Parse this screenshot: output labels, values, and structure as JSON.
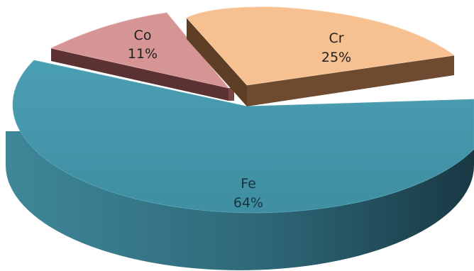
{
  "chart_data": {
    "type": "pie",
    "style": "3d-exploded",
    "slices": [
      {
        "label": "Fe",
        "percent_label": "64%",
        "value": 64,
        "color": "#4597AC",
        "side_color": "#2E6878"
      },
      {
        "label": "Co",
        "percent_label": "11%",
        "value": 11,
        "color": "#D69595",
        "side_color": "#6B3F3F"
      },
      {
        "label": "Cr",
        "percent_label": "25%",
        "value": 25,
        "color": "#F6C090",
        "side_color": "#6E4B30"
      }
    ]
  }
}
